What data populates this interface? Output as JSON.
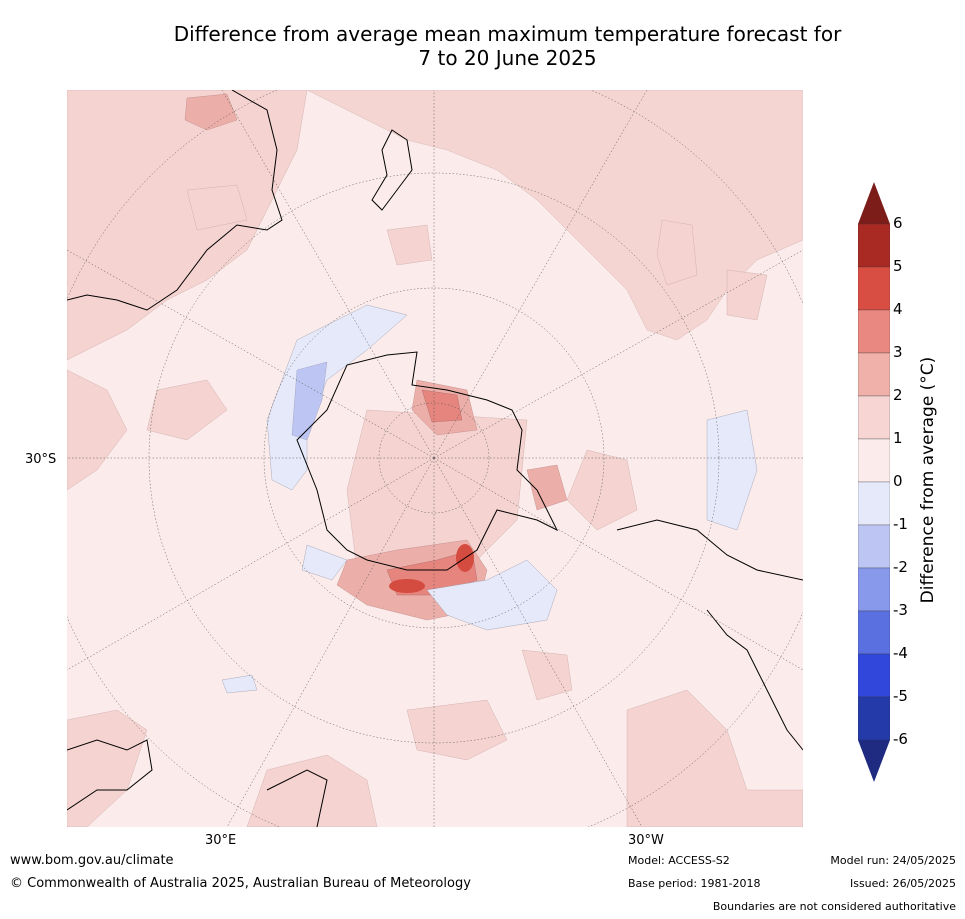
{
  "title_line1": "Difference from average mean maximum temperature forecast for",
  "title_line2": "7 to 20 June 2025",
  "map": {
    "lat_label": "30°S",
    "lon_label_east": "30°E",
    "lon_label_west": "30°W"
  },
  "colorbar": {
    "title": "Difference from average (°C)",
    "ticks": [
      "6",
      "5",
      "4",
      "3",
      "2",
      "1",
      "0",
      "-1",
      "-2",
      "-3",
      "-4",
      "-5",
      "-6"
    ],
    "colors": [
      "#7d1d1a",
      "#a82a23",
      "#d94e43",
      "#e88880",
      "#efb1aa",
      "#f6d5d2",
      "#fbeceb",
      "#e6e9f9",
      "#bdc5f2",
      "#8898ea",
      "#5a6fe0",
      "#3147dc",
      "#233aa8",
      "#1f2b80"
    ]
  },
  "footer": {
    "website": "www.bom.gov.au/climate",
    "copyright": "© Commonwealth of Australia 2025, Australian Bureau of Meteorology",
    "model": "Model: ACCESS-S2",
    "base_period": "Base period: 1981-2018",
    "model_run": "Model run: 24/05/2025",
    "issued": "Issued: 26/05/2025",
    "disclaimer": "Boundaries are not considered authoritative"
  }
}
